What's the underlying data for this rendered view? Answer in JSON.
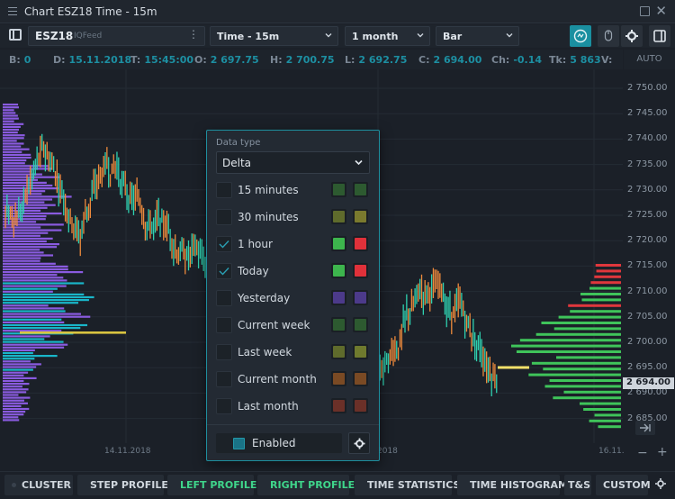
{
  "window": {
    "title": "Chart ESZ18 Time - 15m"
  },
  "toolbar": {
    "symbol": "ESZ18",
    "feed": "IQFeed",
    "timeframe": "Time - 15m",
    "range": "1 month",
    "chart_type": "Bar"
  },
  "info": {
    "b_label": "B:",
    "b_value": "0",
    "d_label": "D:",
    "d_value": "15.11.2018",
    "t_label": "T:",
    "t_value": "15:45:00",
    "o_label": "O:",
    "o_value": "2 697.75",
    "h_label": "H:",
    "h_value": "2 700.75",
    "l_label": "L:",
    "l_value": "2 692.75",
    "c_label": "C:",
    "c_value": "2 694.00",
    "ch_label": "Ch:",
    "ch_value": "-0.14",
    "tk_label": "Tk:",
    "tk_value": "5 863",
    "v_label": "V:",
    "auto": "AUTO"
  },
  "axis": {
    "ticks": [
      "2 750.00",
      "2 745.00",
      "2 740.00",
      "2 735.00",
      "2 730.00",
      "2 725.00",
      "2 720.00",
      "2 715.00",
      "2 710.00",
      "2 705.00",
      "2 700.00",
      "2 695.00",
      "2 690.00",
      "2 685.00"
    ],
    "current_price": "2 694.00",
    "x_labels": [
      "14.11.2018",
      "2018",
      "16.11."
    ]
  },
  "colors": {
    "bull": "#2fd1b0",
    "bear": "#ee8a3c",
    "profile_purple": "#8a5be0",
    "profile_cyan": "#19b6c9",
    "poc": "#d9c440",
    "buy": "#3fc45a",
    "sell": "#e0373c",
    "accent": "#1a8fa0"
  },
  "popup": {
    "data_type_label": "Data type",
    "data_type_value": "Delta",
    "rows": [
      {
        "label": "15 minutes",
        "checked": false,
        "c1": "#2d5a30",
        "c2": "#2d5a30"
      },
      {
        "label": "30 minutes",
        "checked": false,
        "c1": "#5f6b2c",
        "c2": "#7a7a2e"
      },
      {
        "label": "1 hour",
        "checked": true,
        "c1": "#3db54d",
        "c2": "#e0313a"
      },
      {
        "label": "Today",
        "checked": true,
        "c1": "#3db54d",
        "c2": "#e0313a"
      },
      {
        "label": "Yesterday",
        "checked": false,
        "c1": "#4c3a8a",
        "c2": "#4c3a8a"
      },
      {
        "label": "Current week",
        "checked": false,
        "c1": "#2d5a30",
        "c2": "#2d5a30"
      },
      {
        "label": "Last week",
        "checked": false,
        "c1": "#5f6b2c",
        "c2": "#6f7a2e"
      },
      {
        "label": "Current month",
        "checked": false,
        "c1": "#7a4a24",
        "c2": "#7a4a24"
      },
      {
        "label": "Last month",
        "checked": false,
        "c1": "#6b3028",
        "c2": "#6b3028"
      }
    ],
    "enabled_label": "Enabled"
  },
  "tabs": [
    {
      "label": "CLUSTER",
      "active": false
    },
    {
      "label": "STEP PROFILE",
      "active": false
    },
    {
      "label": "LEFT PROFILE",
      "active": true
    },
    {
      "label": "RIGHT PROFILE",
      "active": true
    },
    {
      "label": "TIME STATISTICS",
      "active": false
    },
    {
      "label": "TIME HISTOGRAM",
      "active": false
    },
    {
      "label": "T&S",
      "active": false
    },
    {
      "label": "CUSTOM",
      "active": false
    }
  ]
}
